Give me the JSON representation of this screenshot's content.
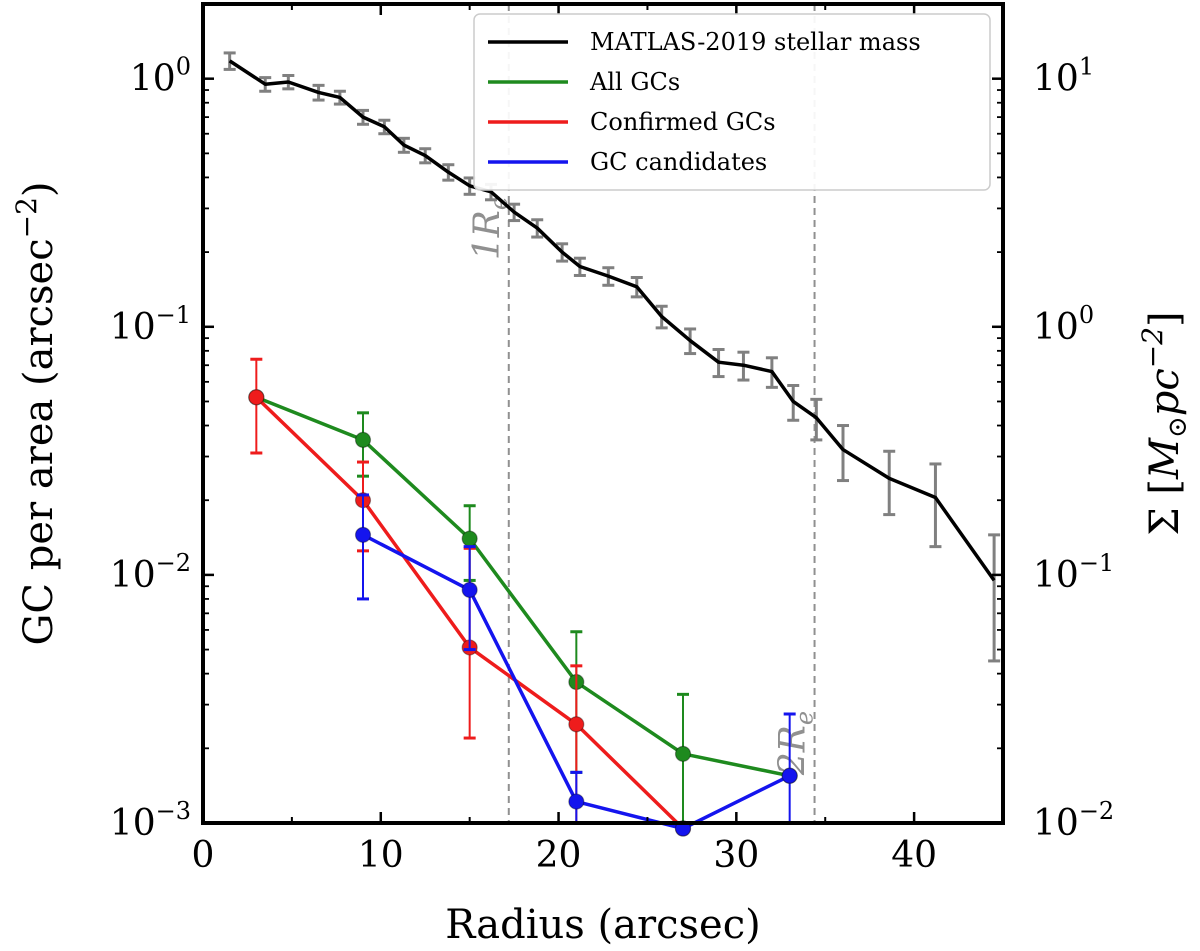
{
  "chart_data": {
    "type": "line",
    "xlabel": "Radius (arcsec)",
    "ylabel_left": "GC per area (arcsec",
    "ylabel_left_exp": "−2",
    "ylabel_left_close": ")",
    "ylabel_right": "Σ [",
    "ylabel_right_M": "M",
    "ylabel_right_sun": "⊙",
    "ylabel_right_pc": "pc",
    "ylabel_right_exp": "−2",
    "ylabel_right_close": "]",
    "xlim": [
      0,
      45
    ],
    "ylim_left": [
      0.001,
      2.0
    ],
    "ylim_right": [
      0.01,
      20.0
    ],
    "yscale": "log",
    "x_ticks": [
      0,
      10,
      20,
      30,
      40
    ],
    "x_tick_labels": [
      "0",
      "10",
      "20",
      "30",
      "40"
    ],
    "y_left_ticks": [
      {
        "value": 1.0,
        "base": "10",
        "exp": "0"
      },
      {
        "value": 0.1,
        "base": "10",
        "exp": "−1"
      },
      {
        "value": 0.01,
        "base": "10",
        "exp": "−2"
      },
      {
        "value": 0.001,
        "base": "10",
        "exp": "−3"
      }
    ],
    "y_right_ticks": [
      {
        "value": 10,
        "base": "10",
        "exp": "1"
      },
      {
        "value": 1,
        "base": "10",
        "exp": "0"
      },
      {
        "value": 0.1,
        "base": "10",
        "exp": "−1"
      },
      {
        "value": 0.01,
        "base": "10",
        "exp": "−2"
      }
    ],
    "vlines": [
      {
        "x": 17.2,
        "label_base": "1R",
        "label_sub": "e",
        "label_y": 0.25
      },
      {
        "x": 34.4,
        "label_base": "2R",
        "label_sub": "e",
        "label_y": 0.0021
      }
    ],
    "series": [
      {
        "name": "MATLAS-2019 stellar mass",
        "color": "#000000",
        "axis": "right",
        "markers": false,
        "errcolor": "#808080",
        "x": [
          1.5,
          3.5,
          4.8,
          6.5,
          7.7,
          9.0,
          10.2,
          11.3,
          12.5,
          13.8,
          15.0,
          16.2,
          17.5,
          18.8,
          20.2,
          21.2,
          22.8,
          24.4,
          25.8,
          27.4,
          29.0,
          30.4,
          32.0,
          33.2,
          34.5,
          36.0,
          38.6,
          41.2,
          44.5
        ],
        "y": [
          11.8,
          9.5,
          9.7,
          8.8,
          8.4,
          7.0,
          6.4,
          5.4,
          4.9,
          4.2,
          3.7,
          3.5,
          2.9,
          2.5,
          2.0,
          1.75,
          1.6,
          1.45,
          1.1,
          0.88,
          0.72,
          0.7,
          0.66,
          0.5,
          0.43,
          0.32,
          0.245,
          0.205,
          0.095
        ],
        "err": [
          0.9,
          0.6,
          0.6,
          0.6,
          0.5,
          0.45,
          0.4,
          0.35,
          0.32,
          0.3,
          0.28,
          0.25,
          0.22,
          0.2,
          0.16,
          0.14,
          0.13,
          0.13,
          0.11,
          0.1,
          0.09,
          0.09,
          0.09,
          0.08,
          0.08,
          0.08,
          0.07,
          0.075,
          0.05
        ]
      },
      {
        "name": "All GCs",
        "color": "#1e8a1e",
        "axis": "left",
        "markers": true,
        "x": [
          3,
          9,
          15,
          21,
          27,
          33
        ],
        "y": [
          0.052,
          0.035,
          0.014,
          0.0037,
          0.0019,
          0.00155
        ],
        "err_lo": [
          0.0,
          0.01,
          0.0045,
          0.0021,
          0.0019,
          0.0
        ],
        "err_hi": [
          0.0,
          0.01,
          0.005,
          0.0022,
          0.0014,
          0.0
        ]
      },
      {
        "name": "Confirmed GCs",
        "color": "#ee1c1c",
        "axis": "left",
        "markers": true,
        "x": [
          3,
          9,
          15,
          21,
          27
        ],
        "y": [
          0.052,
          0.02,
          0.0051,
          0.0025,
          0.00095
        ],
        "err_lo": [
          0.021,
          0.0075,
          0.0029,
          0.0025,
          0.0
        ],
        "err_hi": [
          0.022,
          0.0085,
          0.0077,
          0.0018,
          0.0
        ]
      },
      {
        "name": "GC candidates",
        "color": "#1414ee",
        "axis": "left",
        "markers": true,
        "x": [
          9,
          15,
          21,
          27,
          33
        ],
        "y": [
          0.0145,
          0.0087,
          0.00122,
          0.00095,
          0.00155
        ],
        "err_lo": [
          0.0065,
          0.0037,
          0.00122,
          0.00095,
          0.00155
        ],
        "err_hi": [
          0.0065,
          0.0043,
          0.00038,
          0.0,
          0.0012
        ]
      }
    ],
    "legend_position": "upper-right"
  }
}
